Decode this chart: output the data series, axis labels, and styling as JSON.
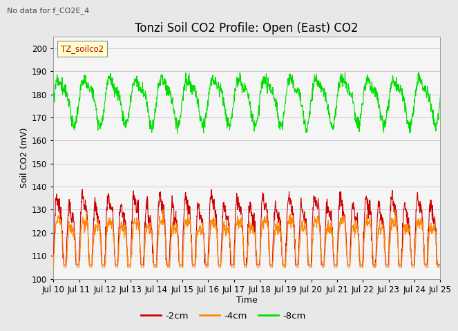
{
  "title": "Tonzi Soil CO2 Profile: Open (East) CO2",
  "subtitle": "No data for f_CO2E_4",
  "ylabel": "Soil CO2 (mV)",
  "xlabel": "Time",
  "ylim": [
    100,
    205
  ],
  "yticks": [
    100,
    110,
    120,
    130,
    140,
    150,
    160,
    170,
    180,
    190,
    200
  ],
  "legend_label": "TZ_soilco2",
  "series": {
    "-2cm": {
      "color": "#cc0000",
      "label": "-2cm"
    },
    "-4cm": {
      "color": "#ff8800",
      "label": "-4cm"
    },
    "-8cm": {
      "color": "#00dd00",
      "label": "-8cm"
    }
  },
  "xtick_labels": [
    "Jul 10",
    "Jul 11",
    "Jul 12",
    "Jul 13",
    "Jul 14",
    "Jul 15",
    "Jul 16",
    "Jul 17",
    "Jul 18",
    "Jul 19",
    "Jul 20",
    "Jul 21",
    "Jul 22",
    "Jul 23",
    "Jul 24",
    "Jul 25"
  ],
  "bg_color": "#e8e8e8",
  "plot_bg_color": "#f5f5f5",
  "grid_color": "#cccccc",
  "title_fontsize": 12,
  "axis_fontsize": 9,
  "tick_fontsize": 8.5
}
